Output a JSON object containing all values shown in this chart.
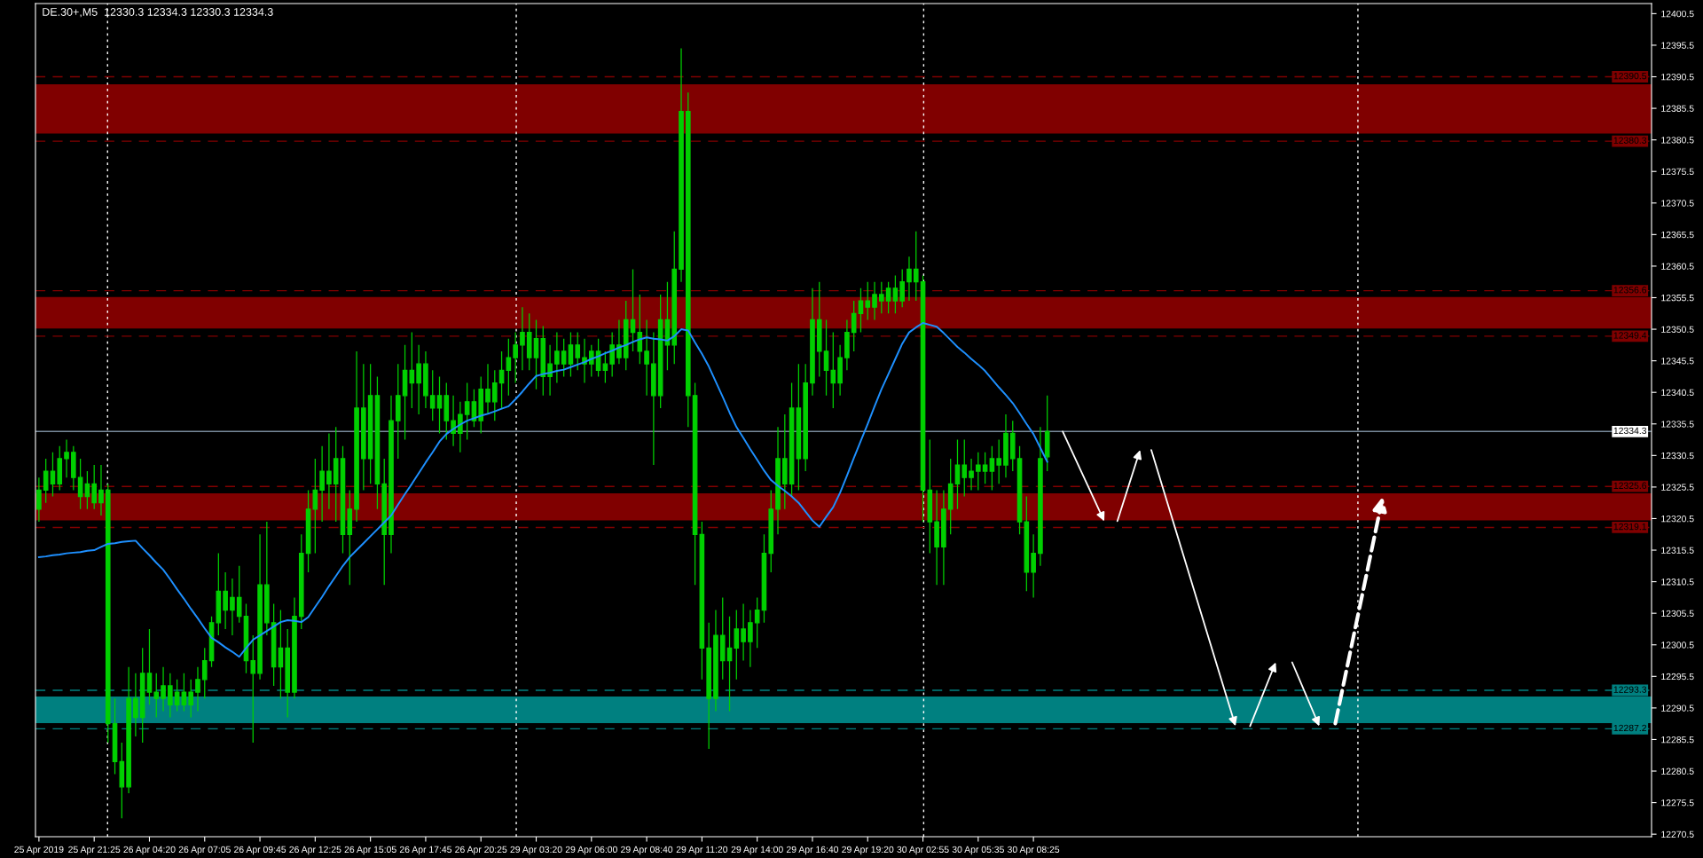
{
  "chart_data": {
    "type": "candlestick",
    "title": "DE.30+,M5  12330.3 12334.3 12330.3 12334.3",
    "color": "#00d000",
    "categories": [
      "25 Apr 2019",
      null,
      null,
      null,
      null,
      null,
      null,
      null,
      "25 Apr 21:25",
      null,
      null,
      null,
      null,
      null,
      null,
      null,
      "26 Apr 04:20",
      null,
      null,
      null,
      null,
      null,
      null,
      null,
      "26 Apr 07:05",
      null,
      null,
      null,
      null,
      null,
      null,
      null,
      "26 Apr 09:45",
      null,
      null,
      null,
      null,
      null,
      null,
      null,
      "26 Apr 12:25",
      null,
      null,
      null,
      null,
      null,
      null,
      null,
      "26 Apr 15:05",
      null,
      null,
      null,
      null,
      null,
      null,
      null,
      "26 Apr 17:45",
      null,
      null,
      null,
      null,
      null,
      null,
      null,
      "26 Apr 20:25",
      null,
      null,
      null,
      null,
      null,
      null,
      null,
      "29 Apr 03:20",
      null,
      null,
      null,
      null,
      null,
      null,
      null,
      "29 Apr 06:00",
      null,
      null,
      null,
      null,
      null,
      null,
      null,
      "29 Apr 08:40",
      null,
      null,
      null,
      null,
      null,
      null,
      null,
      "29 Apr 11:20",
      null,
      null,
      null,
      null,
      null,
      null,
      null,
      "29 Apr 14:00",
      null,
      null,
      null,
      null,
      null,
      null,
      null,
      "29 Apr 16:40",
      null,
      null,
      null,
      null,
      null,
      null,
      null,
      "29 Apr 19:20",
      null,
      null,
      null,
      null,
      null,
      null,
      null,
      "30 Apr 02:55",
      null,
      null,
      null,
      null,
      null,
      null,
      null,
      "30 Apr 05:35",
      null,
      null,
      null,
      null,
      null,
      null,
      null,
      "30 Apr 08:25",
      null,
      null,
      null,
      null,
      null,
      null,
      null,
      null,
      null,
      null,
      null,
      null,
      null,
      null,
      null,
      null,
      null,
      null,
      null,
      null,
      null,
      null,
      null,
      null,
      null,
      null,
      null,
      null,
      null,
      null,
      null,
      null,
      null,
      null,
      null,
      null,
      null,
      null,
      null,
      null,
      null,
      null,
      null,
      null,
      null,
      null,
      null,
      null,
      null,
      null,
      null,
      null,
      null,
      null,
      null,
      null,
      null,
      null,
      null,
      null,
      null,
      null,
      null,
      null,
      null,
      null,
      null,
      null,
      null,
      null,
      null,
      null,
      null,
      null,
      null,
      null,
      null,
      null,
      null,
      null,
      null,
      null,
      null,
      null,
      null,
      null,
      null,
      null,
      null
    ],
    "ohlc": [
      [
        12322,
        12327,
        12320,
        12325
      ],
      [
        12325,
        12330,
        12323,
        12328
      ],
      [
        12328,
        12331,
        12324,
        12326
      ],
      [
        12326,
        12332,
        12325,
        12330
      ],
      [
        12330,
        12333,
        12327,
        12331
      ],
      [
        12331,
        12332,
        12325,
        12327
      ],
      [
        12327,
        12330,
        12322,
        12324
      ],
      [
        12324,
        12328,
        12322,
        12326
      ],
      [
        12326,
        12329,
        12322,
        12323
      ],
      [
        12323,
        12329,
        12321,
        12325
      ],
      [
        12325,
        12326,
        12285,
        12288
      ],
      [
        12288,
        12292,
        12280,
        12282
      ],
      [
        12282,
        12285,
        12273,
        12278
      ],
      [
        12278,
        12297,
        12277,
        12292
      ],
      [
        12292,
        12296,
        12286,
        12289
      ],
      [
        12289,
        12300,
        12285,
        12296
      ],
      [
        12296,
        12303,
        12291,
        12293
      ],
      [
        12293,
        12296,
        12289,
        12292
      ],
      [
        12292,
        12297,
        12290,
        12294
      ],
      [
        12294,
        12296,
        12289,
        12291
      ],
      [
        12291,
        12295,
        12290,
        12293
      ],
      [
        12293,
        12296,
        12290,
        12291
      ],
      [
        12291,
        12295,
        12289,
        12293
      ],
      [
        12293,
        12297,
        12290,
        12295
      ],
      [
        12295,
        12300,
        12292,
        12298
      ],
      [
        12298,
        12305,
        12297,
        12304
      ],
      [
        12304,
        12315,
        12302,
        12309
      ],
      [
        12309,
        12312,
        12303,
        12306
      ],
      [
        12306,
        12311,
        12302,
        12308
      ],
      [
        12308,
        12313,
        12304,
        12305
      ],
      [
        12305,
        12307,
        12296,
        12298
      ],
      [
        12298,
        12302,
        12285,
        12296
      ],
      [
        12296,
        12318,
        12295,
        12310
      ],
      [
        12310,
        12320,
        12302,
        12304
      ],
      [
        12304,
        12307,
        12294,
        12297
      ],
      [
        12297,
        12306,
        12292,
        12300
      ],
      [
        12300,
        12303,
        12289,
        12293
      ],
      [
        12293,
        12308,
        12292,
        12305
      ],
      [
        12305,
        12318,
        12303,
        12315
      ],
      [
        12315,
        12325,
        12312,
        12322
      ],
      [
        12322,
        12330,
        12315,
        12325
      ],
      [
        12325,
        12332,
        12320,
        12328
      ],
      [
        12328,
        12334,
        12322,
        12326
      ],
      [
        12326,
        12335,
        12320,
        12330
      ],
      [
        12330,
        12332,
        12315,
        12318
      ],
      [
        12318,
        12325,
        12310,
        12322
      ],
      [
        12322,
        12347,
        12320,
        12338
      ],
      [
        12338,
        12345,
        12325,
        12330
      ],
      [
        12330,
        12345,
        12326,
        12340
      ],
      [
        12340,
        12343,
        12322,
        12326
      ],
      [
        12326,
        12330,
        12310,
        12318
      ],
      [
        12318,
        12340,
        12315,
        12336
      ],
      [
        12336,
        12345,
        12330,
        12340
      ],
      [
        12340,
        12348,
        12333,
        12344
      ],
      [
        12344,
        12350,
        12338,
        12342
      ],
      [
        12342,
        12348,
        12337,
        12345
      ],
      [
        12345,
        12347,
        12338,
        12340
      ],
      [
        12340,
        12344,
        12336,
        12338
      ],
      [
        12338,
        12343,
        12334,
        12340
      ],
      [
        12340,
        12342,
        12333,
        12336
      ],
      [
        12336,
        12340,
        12332,
        12334
      ],
      [
        12334,
        12339,
        12331,
        12337
      ],
      [
        12337,
        12342,
        12333,
        12339
      ],
      [
        12339,
        12341,
        12335,
        12336
      ],
      [
        12336,
        12343,
        12334,
        12341
      ],
      [
        12341,
        12345,
        12337,
        12339
      ],
      [
        12339,
        12344,
        12336,
        12342
      ],
      [
        12342,
        12347,
        12338,
        12344
      ],
      [
        12344,
        12349,
        12340,
        12346
      ],
      [
        12346,
        12350,
        12342,
        12348
      ],
      [
        12348,
        12354,
        12344,
        12350
      ],
      [
        12350,
        12353,
        12344,
        12346
      ],
      [
        12346,
        12352,
        12341,
        12349
      ],
      [
        12349,
        12351,
        12340,
        12343
      ],
      [
        12343,
        12348,
        12340,
        12345
      ],
      [
        12345,
        12350,
        12342,
        12347
      ],
      [
        12347,
        12349,
        12343,
        12345
      ],
      [
        12345,
        12350,
        12343,
        12348
      ],
      [
        12348,
        12350,
        12344,
        12346
      ],
      [
        12346,
        12349,
        12342,
        12345
      ],
      [
        12345,
        12348,
        12343,
        12347
      ],
      [
        12347,
        12349,
        12343,
        12344
      ],
      [
        12344,
        12347,
        12342,
        12345
      ],
      [
        12345,
        12350,
        12343,
        12348
      ],
      [
        12348,
        12352,
        12345,
        12346
      ],
      [
        12346,
        12355,
        12344,
        12352
      ],
      [
        12352,
        12360,
        12347,
        12350
      ],
      [
        12350,
        12356,
        12345,
        12347
      ],
      [
        12347,
        12352,
        12340,
        12345
      ],
      [
        12345,
        12350,
        12329,
        12340
      ],
      [
        12340,
        12356,
        12338,
        12352
      ],
      [
        12352,
        12358,
        12344,
        12348
      ],
      [
        12348,
        12366,
        12345,
        12360
      ],
      [
        12360,
        12395,
        12358,
        12385
      ],
      [
        12385,
        12388,
        12335,
        12340
      ],
      [
        12340,
        12342,
        12310,
        12318
      ],
      [
        12318,
        12320,
        12295,
        12300
      ],
      [
        12300,
        12304,
        12284,
        12292
      ],
      [
        12292,
        12306,
        12290,
        12302
      ],
      [
        12302,
        12308,
        12295,
        12298
      ],
      [
        12298,
        12305,
        12290,
        12300
      ],
      [
        12300,
        12306,
        12295,
        12303
      ],
      [
        12303,
        12307,
        12298,
        12301
      ],
      [
        12301,
        12306,
        12297,
        12304
      ],
      [
        12304,
        12308,
        12300,
        12306
      ],
      [
        12306,
        12318,
        12304,
        12315
      ],
      [
        12315,
        12325,
        12312,
        12322
      ],
      [
        12322,
        12335,
        12318,
        12330
      ],
      [
        12330,
        12337,
        12322,
        12326
      ],
      [
        12326,
        12342,
        12324,
        12338
      ],
      [
        12338,
        12345,
        12325,
        12330
      ],
      [
        12330,
        12345,
        12328,
        12342
      ],
      [
        12342,
        12357,
        12340,
        12352
      ],
      [
        12352,
        12358,
        12343,
        12347
      ],
      [
        12347,
        12352,
        12340,
        12344
      ],
      [
        12344,
        12350,
        12338,
        12342
      ],
      [
        12342,
        12348,
        12340,
        12346
      ],
      [
        12346,
        12352,
        12344,
        12350
      ],
      [
        12350,
        12355,
        12347,
        12353
      ],
      [
        12353,
        12357,
        12350,
        12355
      ],
      [
        12355,
        12358,
        12352,
        12354
      ],
      [
        12354,
        12358,
        12352,
        12356
      ],
      [
        12356,
        12358,
        12353,
        12355
      ],
      [
        12355,
        12358,
        12353,
        12357
      ],
      [
        12357,
        12359,
        12353,
        12355
      ],
      [
        12355,
        12360,
        12354,
        12358
      ],
      [
        12358,
        12362,
        12355,
        12360
      ],
      [
        12360,
        12366,
        12355,
        12358
      ],
      [
        12358,
        12359,
        12320,
        12325
      ],
      [
        12325,
        12333,
        12315,
        12320
      ],
      [
        12320,
        12325,
        12310,
        12316
      ],
      [
        12316,
        12325,
        12310,
        12322
      ],
      [
        12322,
        12330,
        12318,
        12326
      ],
      [
        12326,
        12333,
        12322,
        12329
      ],
      [
        12329,
        12333,
        12324,
        12327
      ],
      [
        12327,
        12330,
        12325,
        12328
      ],
      [
        12328,
        12331,
        12325,
        12329
      ],
      [
        12329,
        12331,
        12326,
        12328
      ],
      [
        12328,
        12332,
        12325,
        12330
      ],
      [
        12330,
        12333,
        12326,
        12329
      ],
      [
        12329,
        12337,
        12327,
        12334
      ],
      [
        12334,
        12336,
        12328,
        12330
      ],
      [
        12330,
        12332,
        12318,
        12320
      ],
      [
        12320,
        12324,
        12309,
        12312
      ],
      [
        12312,
        12318,
        12308,
        12315
      ],
      [
        12315,
        12335,
        12313,
        12330
      ],
      [
        12330.3,
        12340,
        12328,
        12334.3
      ],
      null,
      null,
      null,
      null,
      null,
      null,
      null,
      null,
      null,
      null,
      null,
      null,
      null,
      null,
      null,
      null,
      null,
      null,
      null,
      null,
      null,
      null,
      null,
      null,
      null,
      null,
      null,
      null,
      null,
      null,
      null,
      null,
      null,
      null,
      null,
      null,
      null,
      null,
      null,
      null,
      null,
      null,
      null,
      null,
      null,
      null,
      null,
      null,
      null,
      null,
      null,
      null,
      null,
      null,
      null,
      null,
      null,
      null,
      null,
      null,
      null,
      null,
      null,
      null,
      null,
      null,
      null,
      null,
      null,
      null,
      null,
      null,
      null,
      null,
      null,
      null,
      null,
      null,
      null,
      null,
      null,
      null,
      null,
      null,
      null,
      null,
      null
    ],
    "series": [
      {
        "type": "line",
        "color": "#1e90ff",
        "values": [
          12314.4,
          12314.5,
          12314.7,
          12314.8,
          12315.0,
          12315.1,
          12315.2,
          12315.4,
          12315.5,
          12316.0,
          12316.5,
          12316.6,
          12316.8,
          12316.9,
          12317.0,
          12315.8,
          12314.7,
          12313.5,
          12312.4,
          12310.9,
          12309.3,
          12307.8,
          12306.2,
          12304.7,
          12303.1,
          12301.6,
          12300.9,
          12300.1,
          12299.4,
          12298.6,
          12300.0,
          12301.3,
          12302.0,
          12302.7,
          12303.4,
          12304.1,
          12304.4,
          12304.3,
          12304.1,
          12304.9,
          12306.5,
          12308.1,
          12309.8,
          12311.4,
          12313.0,
          12314.4,
          12315.5,
          12316.6,
          12317.7,
          12318.8,
          12319.9,
          12321.0,
          12322.7,
          12324.4,
          12326.0,
          12327.7,
          12329.4,
          12331.0,
          12332.7,
          12333.9,
          12334.7,
          12335.4,
          12336.0,
          12336.4,
          12336.8,
          12337.1,
          12337.5,
          12337.9,
          12338.3,
          12339.4,
          12340.6,
          12341.9,
          12343.1,
          12343.4,
          12343.6,
          12343.9,
          12344.1,
          12344.5,
          12344.9,
          12345.3,
          12345.8,
          12346.2,
          12346.7,
          12347.1,
          12347.6,
          12348.0,
          12348.5,
          12348.9,
          12349.2,
          12349.0,
          12348.9,
          12348.7,
          12349.4,
          12350.5,
          12350.3,
          12348.4,
          12346.6,
          12344.6,
          12342.2,
          12339.8,
          12337.3,
          12335.0,
          12333.3,
          12331.5,
          12329.8,
          12328.1,
          12326.6,
          12325.7,
          12324.9,
          12324.0,
          12323.0,
          12321.6,
          12320.2,
          12319.2,
          12320.8,
          12322.3,
          12324.6,
          12327.3,
          12330.1,
          12332.8,
          12335.5,
          12338.3,
          12341.0,
          12343.4,
          12345.8,
          12348.2,
          12350.0,
          12350.8,
          12351.5,
          12351.2,
          12350.9,
          12349.9,
          12348.8,
          12347.7,
          12346.8,
          12345.8,
          12344.9,
          12343.9,
          12342.6,
          12341.3,
          12340.1,
          12338.8,
          12337.2,
          12335.5,
          12333.9,
          12331.7,
          12329.5,
          null,
          null,
          null,
          null,
          null,
          null,
          null,
          null,
          null,
          null,
          null,
          null,
          null,
          null,
          null,
          null,
          null,
          null,
          null,
          null,
          null,
          null,
          null,
          null,
          null,
          null,
          null,
          null,
          null,
          null,
          null,
          null,
          null,
          null,
          null,
          null,
          null,
          null,
          null,
          null,
          null,
          null,
          null,
          null,
          null,
          null,
          null,
          null,
          null,
          null,
          null,
          null,
          null,
          null,
          null,
          null,
          null,
          null,
          null,
          null,
          null,
          null,
          null,
          null,
          null,
          null,
          null,
          null,
          null,
          null,
          null,
          null,
          null,
          null,
          null,
          null,
          null,
          null,
          null,
          null,
          null,
          null,
          null,
          null,
          null,
          null,
          null
        ]
      }
    ],
    "ylim": [
      12270.1,
      12402.1
    ],
    "yticks": [
      12270.5,
      12275.5,
      12280.5,
      12285.5,
      12290.5,
      12295.5,
      12300.5,
      12305.5,
      12310.5,
      12315.5,
      12320.5,
      12325.5,
      12330.5,
      12335.5,
      12340.5,
      12345.5,
      12350.5,
      12355.5,
      12360.5,
      12365.5,
      12370.5,
      12375.5,
      12380.5,
      12385.5,
      12390.5,
      12395.5,
      12400.5
    ],
    "bands": [
      {
        "axis": "y",
        "from": 12381.5,
        "to": 12389.3,
        "color": "#800000"
      },
      {
        "axis": "y",
        "from": 12350.6,
        "to": 12355.6,
        "color": "#800000"
      },
      {
        "axis": "y",
        "from": 12320.2,
        "to": 12324.5,
        "color": "#800000"
      },
      {
        "axis": "y",
        "from": 12288.1,
        "to": 12292.3,
        "color": "#008080"
      }
    ],
    "ref_lines": [
      {
        "axis": "y",
        "value": 12390.5,
        "label": "12390.5",
        "color": "#800000",
        "line_style": "dashed"
      },
      {
        "axis": "y",
        "value": 12380.3,
        "label": "12380.3",
        "color": "#800000",
        "line_style": "dashed"
      },
      {
        "axis": "y",
        "value": 12356.6,
        "label": "12356.6",
        "color": "#800000",
        "line_style": "dashed"
      },
      {
        "axis": "y",
        "value": 12349.4,
        "label": "12349.4",
        "color": "#800000",
        "line_style": "dashed"
      },
      {
        "axis": "y",
        "value": 12325.6,
        "label": "12325.6",
        "color": "#800000",
        "line_style": "dashed"
      },
      {
        "axis": "y",
        "value": 12319.1,
        "label": "12319.1",
        "color": "#800000",
        "line_style": "dashed"
      },
      {
        "axis": "y",
        "value": 12293.3,
        "label": "12293.3",
        "color": "#008080",
        "line_style": "dashed"
      },
      {
        "axis": "y",
        "value": 12287.2,
        "label": "12287.2",
        "color": "#008080",
        "line_style": "dashed"
      },
      {
        "axis": "y",
        "value": 12334.3,
        "label": "12334.3",
        "color": "#778899",
        "line_style": "solid"
      }
    ],
    "grid": false
  }
}
